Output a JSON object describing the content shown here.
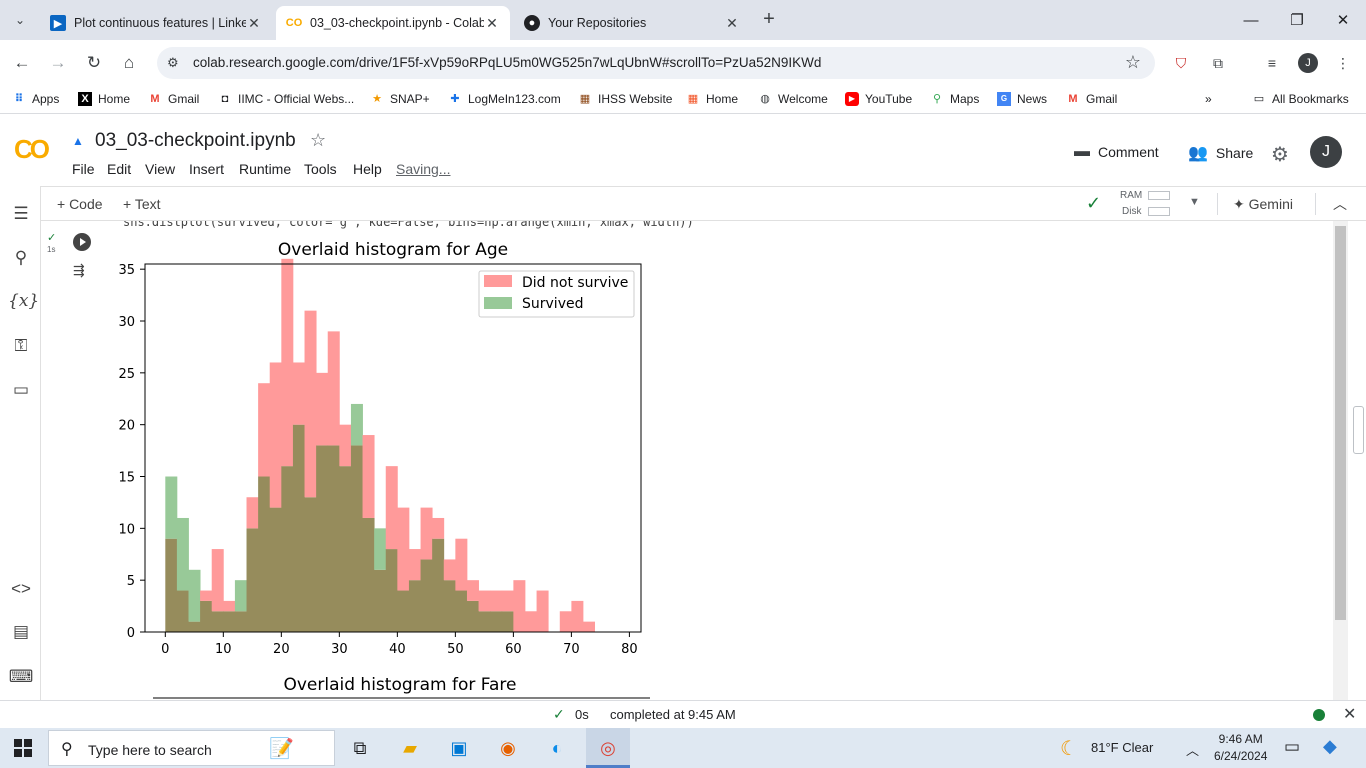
{
  "browser": {
    "tabs": [
      {
        "title": "Plot continuous features | Linke",
        "favicon": "linkedin-learning-icon"
      },
      {
        "title": "03_03-checkpoint.ipynb - Colab",
        "favicon": "colab-icon",
        "active": true
      },
      {
        "title": "Your Repositories",
        "favicon": "github-icon"
      }
    ],
    "url": "colab.research.google.com/drive/1F5f-xVp59oRPqLU5m0WG525n7wLqUbnW#scrollTo=PzUa52N9IKWd",
    "profile_initial": "J",
    "bookmarks": [
      {
        "label": "Apps",
        "icon": "apps-grid-icon"
      },
      {
        "label": "Home",
        "icon": "x-icon"
      },
      {
        "label": "Gmail",
        "icon": "gmail-icon"
      },
      {
        "label": "IIMC - Official Webs...",
        "icon": "iimc-icon"
      },
      {
        "label": "SNAP+",
        "icon": "star-icon"
      },
      {
        "label": "LogMeIn123.com",
        "icon": "logmein-icon"
      },
      {
        "label": "IHSS Website",
        "icon": "ihss-icon"
      },
      {
        "label": "Home",
        "icon": "windows-icon"
      },
      {
        "label": "Welcome",
        "icon": "globe-icon"
      },
      {
        "label": "YouTube",
        "icon": "youtube-icon"
      },
      {
        "label": "Maps",
        "icon": "maps-icon"
      },
      {
        "label": "News",
        "icon": "news-icon"
      },
      {
        "label": "Gmail",
        "icon": "gmail-icon"
      }
    ],
    "all_bookmarks": "All Bookmarks"
  },
  "colab": {
    "notebook_title": "03_03-checkpoint.ipynb",
    "menus": [
      "File",
      "Edit",
      "View",
      "Insert",
      "Runtime",
      "Tools",
      "Help"
    ],
    "saving": "Saving...",
    "comment": "Comment",
    "share": "Share",
    "user_initial": "J",
    "toolbar": {
      "code": "+ Code",
      "text": "+ Text",
      "ram": "RAM",
      "disk": "Disk",
      "gemini": "Gemini"
    },
    "code_line": "sns.distplot(survived, color='g', kde=False, bins=np.arange(xmin, xmax, width))",
    "exec_time": "1s"
  },
  "chart_data": [
    {
      "type": "histogram",
      "title": "Overlaid histogram for Age",
      "xlim": [
        -3.5,
        82
      ],
      "ylim": [
        0,
        35.5
      ],
      "xticks": [
        0,
        10,
        20,
        30,
        40,
        50,
        60,
        70,
        80
      ],
      "yticks": [
        0,
        5,
        10,
        15,
        20,
        25,
        30,
        35
      ],
      "bin_start": 0,
      "bin_width": 2,
      "legend_position": "top-right",
      "colors": {
        "did_not_survive": "#ff9a9a",
        "survived": "#98c998",
        "overlap": "#968c5c"
      },
      "series": [
        {
          "name": "Did not survive",
          "color": "#ff9a9a",
          "values": [
            9,
            4,
            1,
            4,
            8,
            3,
            2,
            13,
            24,
            26,
            36,
            26,
            31,
            25,
            29,
            20,
            18,
            19,
            6,
            16,
            12,
            8,
            12,
            11,
            7,
            9,
            5,
            4,
            4,
            4,
            5,
            2,
            4,
            0,
            2,
            3,
            1,
            0
          ]
        },
        {
          "name": "Survived",
          "color": "#98c998",
          "values": [
            15,
            11,
            6,
            3,
            2,
            2,
            5,
            10,
            15,
            12,
            16,
            20,
            13,
            18,
            18,
            16,
            22,
            11,
            10,
            8,
            4,
            5,
            7,
            9,
            5,
            4,
            3,
            2,
            2,
            2,
            0,
            0,
            0,
            0,
            0,
            0,
            0,
            0
          ]
        }
      ]
    },
    {
      "type": "histogram",
      "title": "Overlaid histogram for Fare"
    }
  ],
  "status": {
    "check_time": "0s",
    "completed": "completed at 9:45 AM"
  },
  "taskbar": {
    "search_placeholder": "Type here to search",
    "weather": "81°F  Clear",
    "time": "9:46 AM",
    "date": "6/24/2024"
  }
}
